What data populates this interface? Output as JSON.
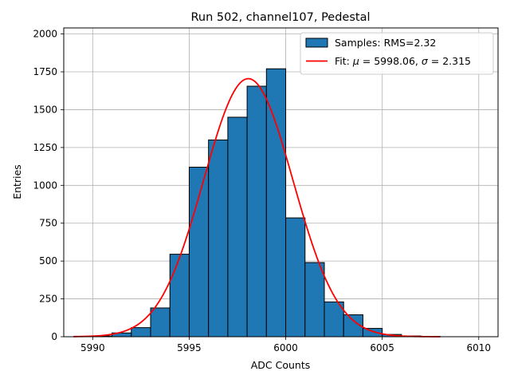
{
  "chart_data": {
    "type": "bar",
    "title": "Run 502, channel107, Pedestal",
    "xlabel": "ADC Counts",
    "ylabel": "Entries",
    "xlim": [
      5988.5,
      6011.0
    ],
    "ylim": [
      0,
      2040
    ],
    "x_ticks": [
      5990,
      5995,
      6000,
      6005,
      6010
    ],
    "y_ticks": [
      0,
      250,
      500,
      750,
      1000,
      1250,
      1500,
      1750,
      2000
    ],
    "grid": true,
    "legend_position": "top-right",
    "bin_edges": [
      5989,
      5990,
      5991,
      5992,
      5993,
      5994,
      5995,
      5996,
      5997,
      5998,
      5999,
      6000,
      6001,
      6002,
      6003,
      6004,
      6005,
      6006,
      6007,
      6008
    ],
    "counts": [
      0,
      5,
      25,
      60,
      190,
      545,
      1120,
      1300,
      1450,
      1655,
      1770,
      785,
      490,
      230,
      145,
      55,
      15,
      5,
      2
    ],
    "series": [
      {
        "name": "Samples: RMS=2.32",
        "kind": "histogram",
        "color": "#1f77b4",
        "edgecolor": "#000000"
      },
      {
        "name": "Fit: μ = 5998.06, σ = 2.315",
        "kind": "gaussian",
        "color": "#ff0000",
        "mu": 5998.06,
        "sigma": 2.315,
        "amplitude": 1705,
        "x_range": [
          5989,
          6008
        ]
      }
    ],
    "legend": {
      "samples_label": "Samples: RMS=2.32",
      "fit_prefix": "Fit: ",
      "mu_symbol": "μ",
      "mu_text": " = 5998.06, ",
      "sigma_symbol": "σ",
      "sigma_text": " = 2.315"
    }
  }
}
